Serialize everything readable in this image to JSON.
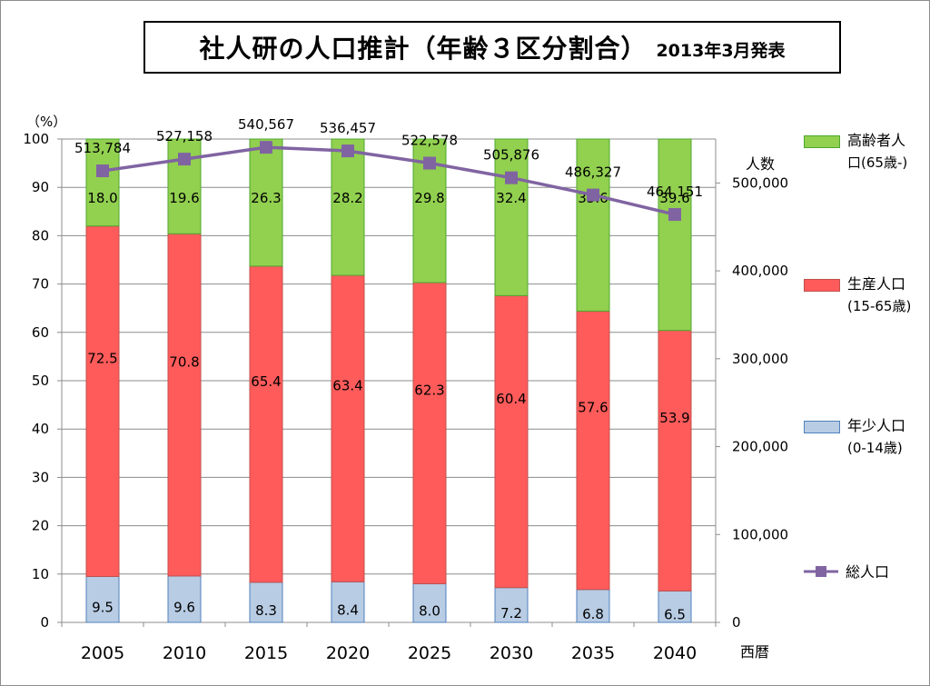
{
  "title": {
    "main": "社人研の人口推計（年齢３区分割合）",
    "sub": "2013年3月発表"
  },
  "chart_data": {
    "type": "bar",
    "stacked": true,
    "categories": [
      "2005",
      "2010",
      "2015",
      "2020",
      "2025",
      "2030",
      "2035",
      "2040"
    ],
    "xlabel": "西暦",
    "ylabel_left": "（%）",
    "ylabel_right": "人数",
    "ylim_left": [
      0,
      100
    ],
    "ylim_right": [
      0,
      550000
    ],
    "yticks_left": [
      0,
      10,
      20,
      30,
      40,
      50,
      60,
      70,
      80,
      90,
      100
    ],
    "yticks_right": [
      0,
      100000,
      200000,
      300000,
      400000,
      500000
    ],
    "yticks_right_labels": [
      "0",
      "100,000",
      "200,000",
      "300,000",
      "400,000",
      "500,000"
    ],
    "grid": true,
    "legend_position": "right",
    "series": [
      {
        "name": "年少人口(0-14歳)",
        "axis": "left",
        "color": "#b8cce4",
        "border": "#4f81bd",
        "values": [
          9.5,
          9.6,
          8.3,
          8.4,
          8.0,
          7.2,
          6.8,
          6.5
        ],
        "labels": [
          "9.5",
          "9.6",
          "8.3",
          "8.4",
          "8.0",
          "7.2",
          "6.8",
          "6.5"
        ]
      },
      {
        "name": "生産人口(15-65歳)",
        "axis": "left",
        "color": "#ff5b5b",
        "border": "#c0504d",
        "values": [
          72.5,
          70.8,
          65.4,
          63.4,
          62.3,
          60.4,
          57.6,
          53.9
        ],
        "labels": [
          "72.5",
          "70.8",
          "65.4",
          "63.4",
          "62.3",
          "60.4",
          "57.6",
          "53.9"
        ]
      },
      {
        "name": "高齢者人口(65歳-)",
        "axis": "left",
        "color": "#92d050",
        "border": "#4ea72e",
        "values": [
          18.0,
          19.6,
          26.3,
          28.2,
          29.8,
          32.4,
          35.6,
          39.6
        ],
        "labels": [
          "18.0",
          "19.6",
          "26.3",
          "28.2",
          "29.8",
          "32.4",
          "35.6",
          "39.6"
        ]
      },
      {
        "name": "総人口",
        "axis": "right",
        "type": "line",
        "color": "#8064a2",
        "values": [
          513784,
          527158,
          540567,
          536457,
          522578,
          505876,
          486327,
          464151
        ],
        "labels": [
          "513,784",
          "527,158",
          "540,567",
          "536,457",
          "522,578",
          "505,876",
          "486,327",
          "464,151"
        ]
      }
    ]
  },
  "legend": {
    "elderly_line1": "高齢者人",
    "elderly_line2": "口(65歳-)",
    "working_line1": "生産人口",
    "working_line2": "(15-65歳)",
    "young_line1": "年少人口",
    "young_line2": "(0-14歳)",
    "total": "総人口",
    "colors": {
      "elderly": "#92d050",
      "working": "#ff5b5b",
      "young": "#b8cce4",
      "total": "#8064a2"
    }
  }
}
